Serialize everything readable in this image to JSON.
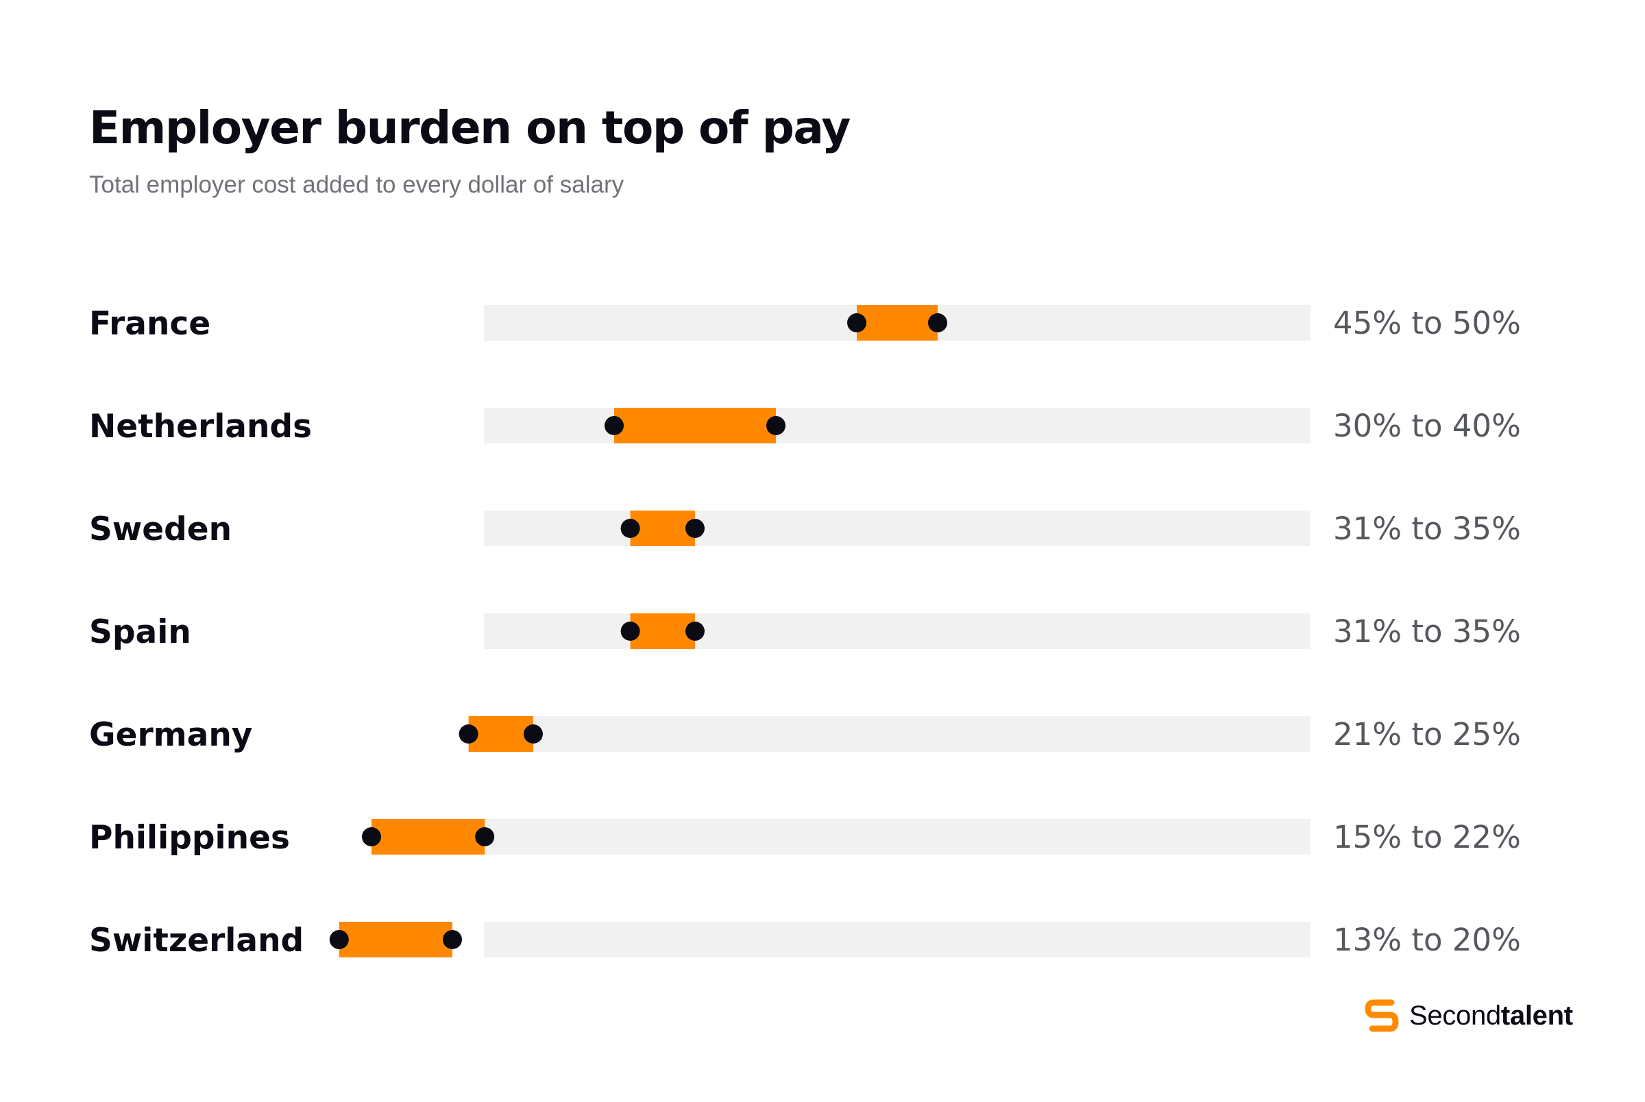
{
  "chart_data": {
    "type": "range",
    "title": "Employer burden on top of pay",
    "subtitle": "Total employer cost added to every dollar of salary",
    "xlim": [
      0,
      50
    ],
    "grid": false,
    "rows": [
      {
        "name": "France",
        "low": 45,
        "high": 50,
        "label": "45% to 50%"
      },
      {
        "name": "Netherlands",
        "low": 30,
        "high": 40,
        "label": "30% to 40%"
      },
      {
        "name": "Sweden",
        "low": 31,
        "high": 35,
        "label": "31% to 35%"
      },
      {
        "name": "Spain",
        "low": 31,
        "high": 35,
        "label": "31% to 35%"
      },
      {
        "name": "Germany",
        "low": 21,
        "high": 25,
        "label": "21% to 25%"
      },
      {
        "name": "Philippines",
        "low": 15,
        "high": 22,
        "label": "15% to 22%"
      },
      {
        "name": "Switzerland",
        "low": 13,
        "high": 20,
        "label": "13% to 20%"
      }
    ]
  },
  "brand": {
    "name_regular": "Second",
    "name_bold": "talent"
  },
  "colors": {
    "track": "#f0f1f0",
    "range": "#ff8800",
    "endpoint": "#0a0b14",
    "brand_icon": "#ff8a00"
  }
}
